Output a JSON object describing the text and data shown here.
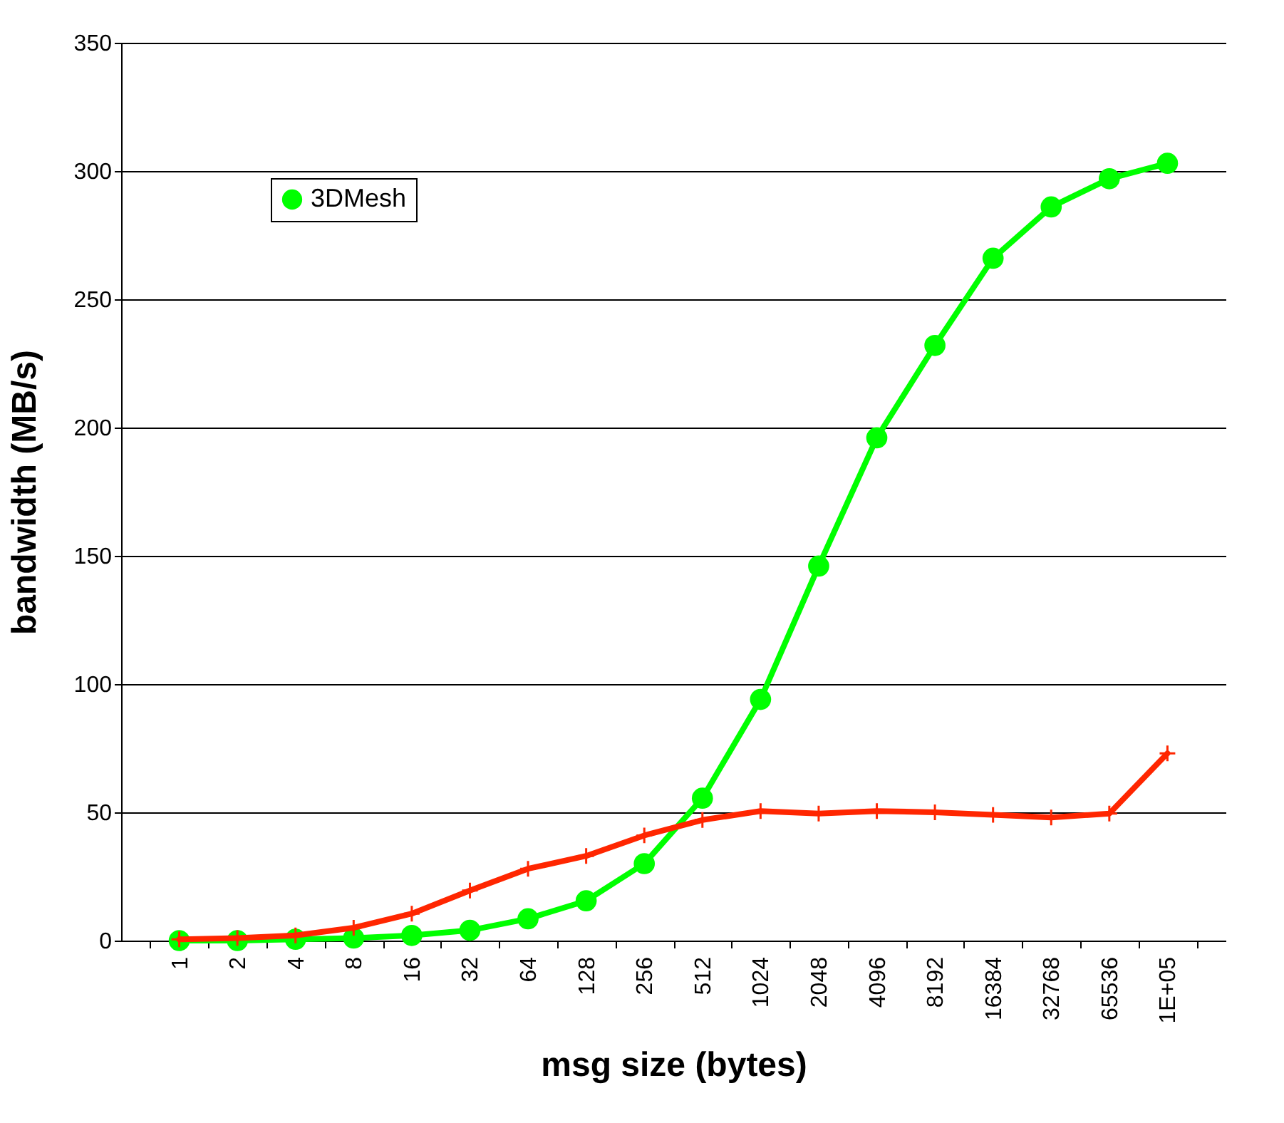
{
  "chart_data": {
    "type": "line",
    "xlabel": "msg size (bytes)",
    "ylabel": "bandwidth (MB/s)",
    "categories": [
      "1",
      "2",
      "4",
      "8",
      "16",
      "32",
      "64",
      "128",
      "256",
      "512",
      "1024",
      "2048",
      "4096",
      "8192",
      "16384",
      "32768",
      "65536",
      "1E+05"
    ],
    "series": [
      {
        "name": "3DMesh",
        "color": "#00ff00",
        "marker": "circle",
        "values": [
          0,
          0,
          0.5,
          1,
          2,
          4,
          8.5,
          15.5,
          30,
          55.5,
          94,
          146,
          196,
          232,
          266,
          286,
          297,
          303
        ]
      },
      {
        "color": "#ff2600",
        "marker": "cross",
        "values": [
          0.5,
          1,
          2,
          5,
          10.5,
          19.5,
          28,
          33,
          41,
          47,
          50.5,
          49.5,
          50.5,
          50,
          49,
          48,
          49.5,
          73
        ]
      }
    ],
    "ylim": [
      0,
      350
    ],
    "yticks": [
      0,
      50,
      100,
      150,
      200,
      250,
      300,
      350
    ],
    "grid": "y",
    "legend": "top left"
  }
}
